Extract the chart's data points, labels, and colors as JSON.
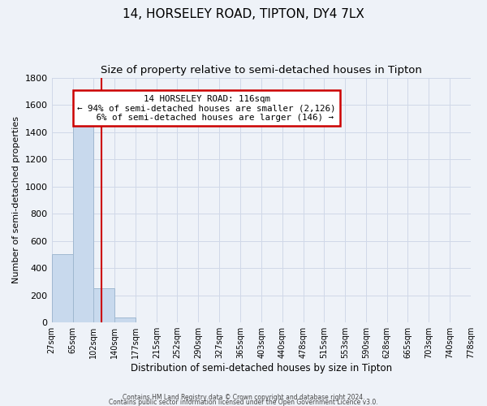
{
  "title": "14, HORSELEY ROAD, TIPTON, DY4 7LX",
  "subtitle": "Size of property relative to semi-detached houses in Tipton",
  "xlabel": "Distribution of semi-detached houses by size in Tipton",
  "ylabel": "Number of semi-detached properties",
  "footer_line1": "Contains HM Land Registry data © Crown copyright and database right 2024.",
  "footer_line2": "Contains public sector information licensed under the Open Government Licence v3.0.",
  "annotation_line1": "14 HORSELEY ROAD: 116sqm",
  "annotation_line2": "← 94% of semi-detached houses are smaller (2,126)",
  "annotation_line3": "6% of semi-detached houses are larger (146) →",
  "property_size": 116,
  "bar_edges": [
    27,
    65,
    102,
    140,
    177,
    215,
    252,
    290,
    327,
    365,
    403,
    440,
    478,
    515,
    553,
    590,
    628,
    665,
    703,
    740,
    778
  ],
  "bar_heights": [
    500,
    1500,
    250,
    35,
    0,
    0,
    0,
    0,
    0,
    0,
    0,
    0,
    0,
    0,
    0,
    0,
    0,
    0,
    0,
    0
  ],
  "bar_color": "#c8d9ed",
  "bar_edge_color": "#a0b8d0",
  "vline_color": "#cc0000",
  "vline_x": 116,
  "annotation_box_color": "#cc0000",
  "annotation_box_fill": "#ffffff",
  "ylim": [
    0,
    1800
  ],
  "yticks": [
    0,
    200,
    400,
    600,
    800,
    1000,
    1200,
    1400,
    1600,
    1800
  ],
  "grid_color": "#d0d8e8",
  "bg_color": "#eef2f8",
  "title_fontsize": 11,
  "subtitle_fontsize": 9.5
}
